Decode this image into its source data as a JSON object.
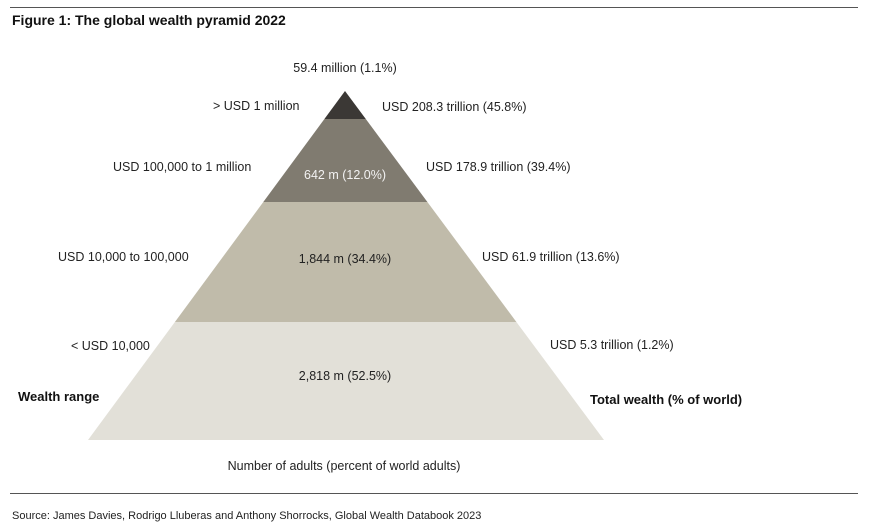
{
  "figure": {
    "title": "Figure 1: The global wealth pyramid 2022"
  },
  "colors": {
    "tier_top": "#3b3835",
    "tier_upper": "#807b70",
    "tier_middle": "#c0bbaa",
    "tier_base": "#e2e0d8",
    "rule": "#555555"
  },
  "top_adults_label": "59.4 million (1.1%)",
  "tiers": [
    {
      "range": "> USD 1 million",
      "adults": "",
      "total_wealth": "USD 208.3 trillion (45.8%)"
    },
    {
      "range": "USD 100,000  to 1 million",
      "adults": "642 m (12.0%)",
      "total_wealth": "USD 178.9 trillion (39.4%)"
    },
    {
      "range": "USD 10,000  to 100,000",
      "adults": "1,844 m (34.4%)",
      "total_wealth": "USD 61.9 trillion (13.6%)"
    },
    {
      "range": "< USD 10,000",
      "adults": "2,818 m (52.5%)",
      "total_wealth": "USD 5.3 trillion (1.2%)"
    }
  ],
  "axis_labels": {
    "left": "Wealth range",
    "right": "Total wealth (% of world)",
    "bottom": "Number of adults (percent of world adults)"
  },
  "source": "Source: James Davies, Rodrigo Lluberas and Anthony Shorrocks, Global Wealth Databook 2023"
}
